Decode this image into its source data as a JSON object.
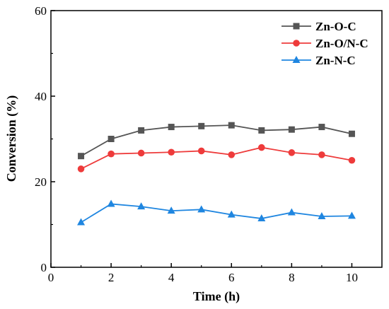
{
  "chart_data": {
    "type": "line",
    "xlabel": "Time (h)",
    "ylabel": "Conversion (%)",
    "xlim": [
      0,
      11
    ],
    "ylim": [
      0,
      60
    ],
    "xticks": [
      "0",
      "2",
      "4",
      "6",
      "8",
      "10"
    ],
    "yticks": [
      "0",
      "20",
      "40",
      "60"
    ],
    "grid": false,
    "legend_position": "top-right",
    "x": [
      1,
      2,
      3,
      4,
      5,
      6,
      7,
      8,
      9,
      10
    ],
    "series": [
      {
        "name": "Zn-O-C",
        "marker": "square",
        "color": "#555555",
        "values": [
          26.0,
          30.0,
          32.0,
          32.8,
          33.0,
          33.2,
          32.0,
          32.2,
          32.8,
          31.2
        ]
      },
      {
        "name": "Zn-O/N-C",
        "marker": "circle",
        "color": "#ee3b3b",
        "values": [
          23.0,
          26.5,
          26.7,
          26.9,
          27.2,
          26.3,
          28.0,
          26.8,
          26.3,
          25.0
        ]
      },
      {
        "name": "Zn-N-C",
        "marker": "triangle",
        "color": "#1f86e0",
        "values": [
          10.5,
          14.8,
          14.2,
          13.2,
          13.5,
          12.3,
          11.4,
          12.8,
          11.9,
          12.0
        ]
      }
    ]
  }
}
